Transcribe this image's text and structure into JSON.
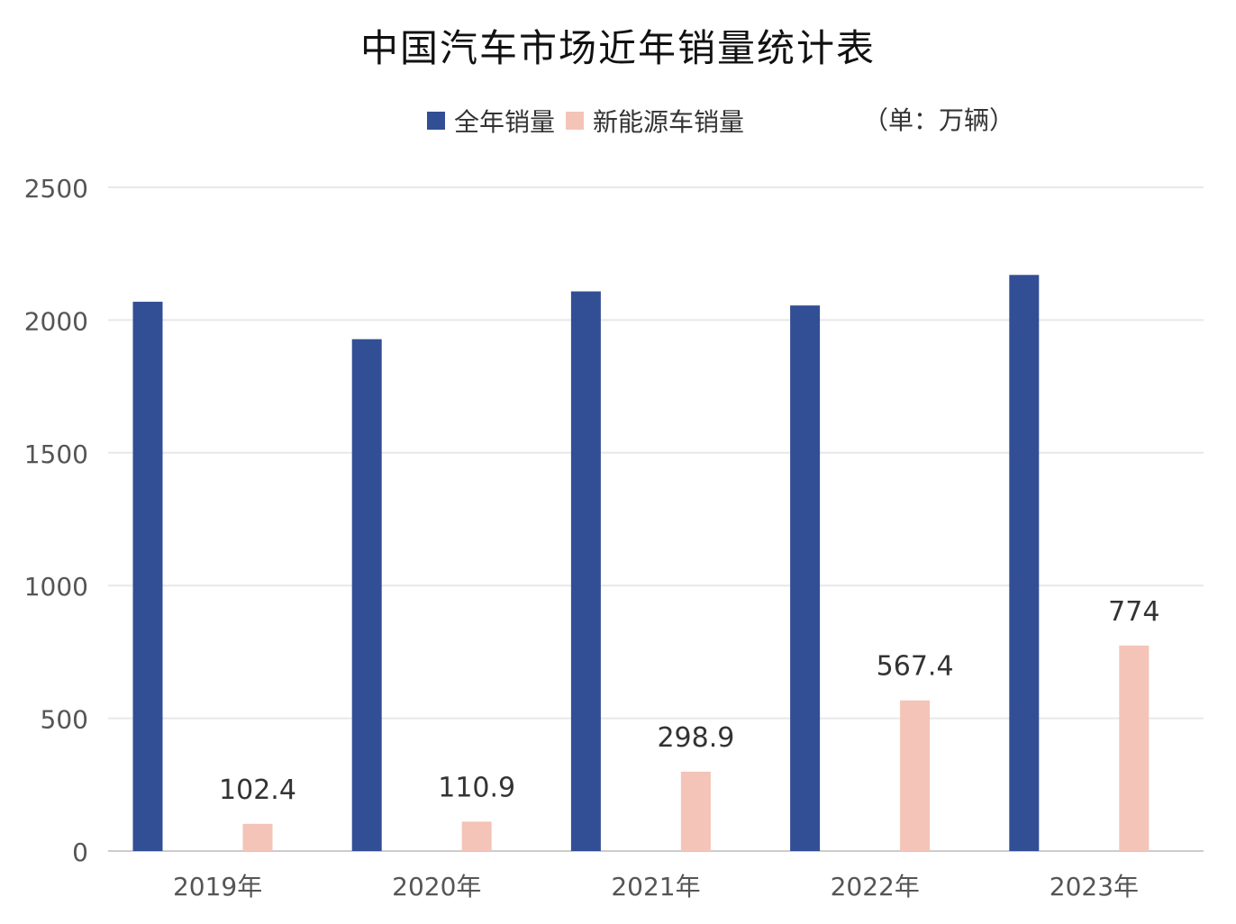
{
  "chart": {
    "title": "中国汽车市场近年销量统计表",
    "unit_note": "（单：万辆）"
  },
  "colors": {
    "total": "#324E95",
    "nev": "#F3C4B7",
    "grid": "#e8e8e8",
    "axis": "#cccccc",
    "text": "#555555",
    "label": "#333333"
  },
  "chart_data": {
    "type": "bar",
    "title": "中国汽车市场近年销量统计表",
    "categories": [
      "2019年",
      "2020年",
      "2021年",
      "2022年",
      "2023年"
    ],
    "series": [
      {
        "name": "全年销量",
        "values": [
          2069,
          1928,
          2108,
          2055,
          2170
        ]
      },
      {
        "name": "新能源车销量",
        "values": [
          102.4,
          110.9,
          298.9,
          567.4,
          774
        ]
      }
    ],
    "data_labels": [
      "102.4",
      "110.9",
      "298.9",
      "567.4",
      "774"
    ],
    "ylim": [
      0,
      2500
    ],
    "yticks": [
      0,
      500,
      1000,
      1500,
      2000,
      2500
    ],
    "grid": true,
    "legend": "top"
  }
}
